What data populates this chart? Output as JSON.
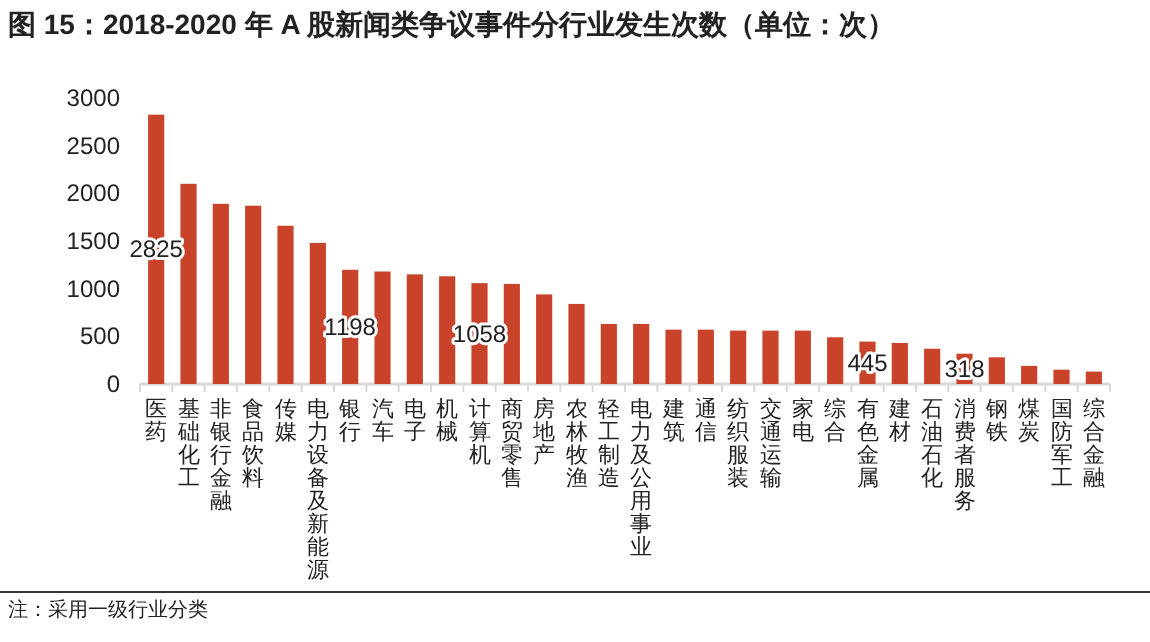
{
  "chart_data": {
    "type": "bar",
    "title": "图 15：2018-2020 年 A 股新闻类争议事件分行业发生次数（单位：次）",
    "categories": [
      "医药",
      "基础化工",
      "非银行金融",
      "食品饮料",
      "传媒",
      "电力设备及新能源",
      "银行",
      "汽车",
      "电子",
      "机械",
      "计算机",
      "商贸零售",
      "房地产",
      "农林牧渔",
      "轻工制造",
      "电力及公用事业",
      "建筑",
      "通信",
      "纺织服装",
      "交通运输",
      "家电",
      "综合",
      "有色金属",
      "建材",
      "石油石化",
      "消费者服务",
      "钢铁",
      "煤炭",
      "国防军工",
      "综合金融"
    ],
    "values": [
      2825,
      2100,
      1890,
      1870,
      1660,
      1480,
      1198,
      1180,
      1150,
      1130,
      1058,
      1050,
      940,
      840,
      630,
      630,
      570,
      570,
      560,
      560,
      560,
      490,
      445,
      430,
      370,
      318,
      280,
      190,
      150,
      130
    ],
    "value_labels": [
      "2825",
      null,
      null,
      null,
      null,
      null,
      "1198",
      null,
      null,
      null,
      "1058",
      null,
      null,
      null,
      null,
      null,
      null,
      null,
      null,
      null,
      null,
      null,
      "445",
      null,
      null,
      "318",
      null,
      null,
      null,
      null
    ],
    "color": "#c8432a",
    "ylim": [
      0,
      3000
    ],
    "yticks": [
      0,
      500,
      1000,
      1500,
      2000,
      2500,
      3000
    ],
    "annotations": [
      "注：采用一级行业分类"
    ]
  }
}
